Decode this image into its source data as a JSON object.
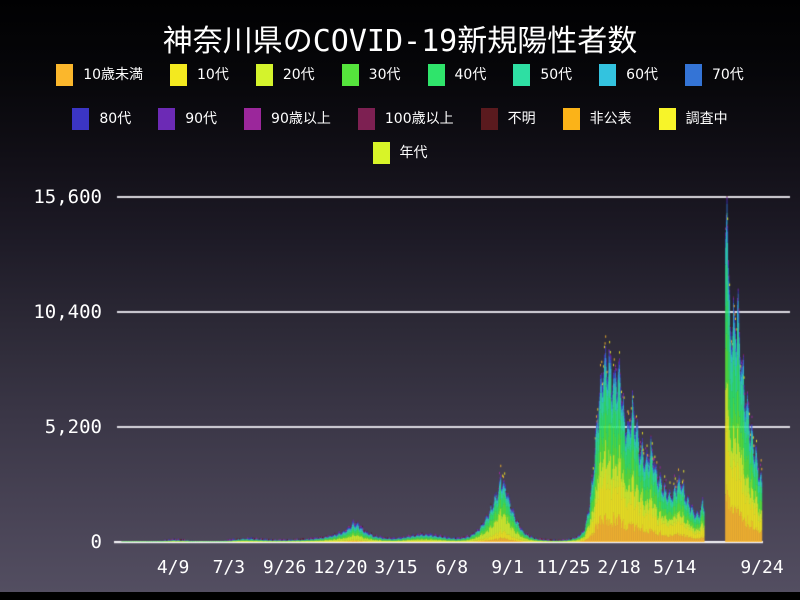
{
  "title": "神奈川県のCOVID-19新規陽性者数",
  "legend": {
    "rows": [
      [
        {
          "label": "10歳未満",
          "color": "#FBB72C"
        },
        {
          "label": "10代",
          "color": "#F3E91F"
        },
        {
          "label": "20代",
          "color": "#D4F32C"
        },
        {
          "label": "30代",
          "color": "#55E43C"
        },
        {
          "label": "40代",
          "color": "#2FE46B"
        },
        {
          "label": "50代",
          "color": "#2EDFA3"
        },
        {
          "label": "60代",
          "color": "#33C3DF"
        },
        {
          "label": "70代",
          "color": "#3474D6"
        }
      ],
      [
        {
          "label": "80代",
          "color": "#3B35C4"
        },
        {
          "label": "90代",
          "color": "#6C2AB5"
        },
        {
          "label": "90歳以上",
          "color": "#9B279B"
        },
        {
          "label": "100歳以上",
          "color": "#7D2052"
        },
        {
          "label": "不明",
          "color": "#5A1A1E"
        },
        {
          "label": "非公表",
          "color": "#FBB318"
        },
        {
          "label": "調査中",
          "color": "#F7F429"
        }
      ],
      [
        {
          "label": "年代",
          "color": "#D8F428"
        }
      ]
    ]
  },
  "chart_data": {
    "type": "bar",
    "stacked": true,
    "title": "神奈川県のCOVID-19新規陽性者数",
    "xlabel": "",
    "ylabel": "",
    "ylim": [
      0,
      15600
    ],
    "grid": "horizontal",
    "legend_position": "top",
    "yticks": [
      {
        "label": "15,600",
        "value": 15600
      },
      {
        "label": "10,400",
        "value": 10400
      },
      {
        "label": "5,200",
        "value": 5200
      },
      {
        "label": "0",
        "value": 0
      }
    ],
    "xticks": [
      {
        "label": "4/9",
        "day": 84
      },
      {
        "label": "7/3",
        "day": 169
      },
      {
        "label": "9/26",
        "day": 254
      },
      {
        "label": "12/20",
        "day": 339
      },
      {
        "label": "3/15",
        "day": 424
      },
      {
        "label": "6/8",
        "day": 509
      },
      {
        "label": "9/1",
        "day": 594
      },
      {
        "label": "11/25",
        "day": 679
      },
      {
        "label": "2/18",
        "day": 764
      },
      {
        "label": "5/14",
        "day": 849
      },
      {
        "label": "9/24",
        "day": 982
      }
    ],
    "total_days": 982,
    "gap_days": {
      "start": 894,
      "end": 925
    },
    "keyframes_day_total": [
      [
        0,
        0
      ],
      [
        10,
        8
      ],
      [
        20,
        16
      ],
      [
        40,
        30
      ],
      [
        70,
        60
      ],
      [
        84,
        100
      ],
      [
        95,
        85
      ],
      [
        110,
        55
      ],
      [
        125,
        30
      ],
      [
        140,
        25
      ],
      [
        160,
        50
      ],
      [
        175,
        95
      ],
      [
        190,
        155
      ],
      [
        205,
        145
      ],
      [
        220,
        110
      ],
      [
        235,
        85
      ],
      [
        252,
        82
      ],
      [
        268,
        98
      ],
      [
        282,
        115
      ],
      [
        295,
        145
      ],
      [
        310,
        195
      ],
      [
        325,
        290
      ],
      [
        340,
        430
      ],
      [
        350,
        620
      ],
      [
        359,
        930
      ],
      [
        366,
        840
      ],
      [
        375,
        520
      ],
      [
        390,
        290
      ],
      [
        405,
        180
      ],
      [
        420,
        155
      ],
      [
        435,
        210
      ],
      [
        450,
        300
      ],
      [
        462,
        360
      ],
      [
        475,
        340
      ],
      [
        490,
        265
      ],
      [
        505,
        185
      ],
      [
        520,
        165
      ],
      [
        535,
        260
      ],
      [
        548,
        520
      ],
      [
        558,
        950
      ],
      [
        568,
        1550
      ],
      [
        578,
        2400
      ],
      [
        583,
        2950
      ],
      [
        590,
        2550
      ],
      [
        598,
        1750
      ],
      [
        608,
        950
      ],
      [
        618,
        470
      ],
      [
        628,
        230
      ],
      [
        640,
        125
      ],
      [
        655,
        75
      ],
      [
        670,
        60
      ],
      [
        685,
        95
      ],
      [
        700,
        210
      ],
      [
        710,
        520
      ],
      [
        718,
        1600
      ],
      [
        725,
        3600
      ],
      [
        732,
        6600
      ],
      [
        740,
        8300
      ],
      [
        747,
        8900
      ],
      [
        752,
        8100
      ],
      [
        757,
        7700
      ],
      [
        763,
        8400
      ],
      [
        768,
        6900
      ],
      [
        772,
        5900
      ],
      [
        778,
        5500
      ],
      [
        784,
        6700
      ],
      [
        790,
        5300
      ],
      [
        797,
        4400
      ],
      [
        806,
        3800
      ],
      [
        812,
        4500
      ],
      [
        818,
        3700
      ],
      [
        825,
        3000
      ],
      [
        835,
        2400
      ],
      [
        845,
        2200
      ],
      [
        852,
        2800
      ],
      [
        857,
        3000
      ],
      [
        863,
        2400
      ],
      [
        871,
        1800
      ],
      [
        880,
        1350
      ],
      [
        887,
        1400
      ],
      [
        891,
        1950
      ],
      [
        893,
        1800
      ],
      [
        925,
        0
      ],
      [
        926,
        14000
      ],
      [
        928,
        15600
      ],
      [
        930,
        13000
      ],
      [
        933,
        10500
      ],
      [
        936,
        9900
      ],
      [
        940,
        10400
      ],
      [
        944,
        11200
      ],
      [
        948,
        9300
      ],
      [
        953,
        7800
      ],
      [
        958,
        6700
      ],
      [
        963,
        5700
      ],
      [
        968,
        4800
      ],
      [
        972,
        4300
      ],
      [
        976,
        3500
      ],
      [
        981,
        2800
      ]
    ],
    "age_groups": [
      {
        "name": "10歳未満",
        "color": "#FBB72C"
      },
      {
        "name": "10代",
        "color": "#F3E91F"
      },
      {
        "name": "20代",
        "color": "#D4F32C"
      },
      {
        "name": "30代",
        "color": "#55E43C"
      },
      {
        "name": "40代",
        "color": "#2FE46B"
      },
      {
        "name": "50代",
        "color": "#2EDFA3"
      },
      {
        "name": "60代",
        "color": "#33C3DF"
      },
      {
        "name": "70代",
        "color": "#3474D6"
      },
      {
        "name": "80代",
        "color": "#3B35C4"
      },
      {
        "name": "90代以上",
        "color": "#6C2AB5"
      }
    ],
    "era_shares": [
      {
        "from_day": 0,
        "shares": [
          0.05,
          0.07,
          0.24,
          0.16,
          0.14,
          0.13,
          0.09,
          0.06,
          0.04,
          0.02
        ]
      },
      {
        "from_day": 535,
        "shares": [
          0.06,
          0.11,
          0.27,
          0.19,
          0.15,
          0.1,
          0.06,
          0.03,
          0.02,
          0.01
        ]
      },
      {
        "from_day": 705,
        "shares": [
          0.13,
          0.21,
          0.13,
          0.15,
          0.16,
          0.11,
          0.05,
          0.03,
          0.02,
          0.01
        ]
      },
      {
        "from_day": 925,
        "shares": [
          0.15,
          0.2,
          0.12,
          0.14,
          0.15,
          0.12,
          0.06,
          0.03,
          0.01,
          0.01
        ]
      }
    ],
    "tip_colors": [
      "#3B35C4",
      "#6C2AB5",
      "#9B279B",
      "#7D2052",
      "#5A1A1E"
    ],
    "speck_colors": [
      "#F3E91F",
      "#FBB72C",
      "#F7F429",
      "#9B279B"
    ]
  }
}
